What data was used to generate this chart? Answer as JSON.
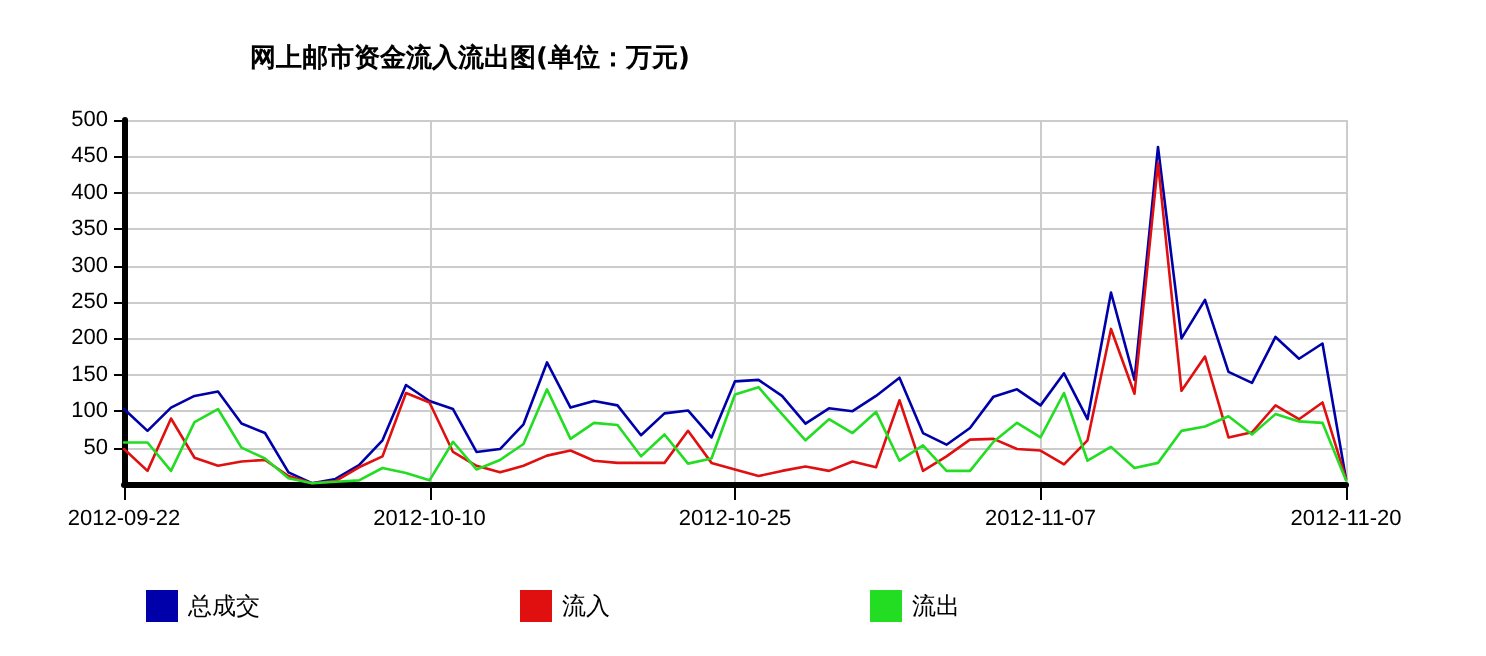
{
  "chart_data": {
    "type": "line",
    "title": "网上邮市资金流入流出图(单位：万元)",
    "categories": [
      "2012-09-22",
      null,
      null,
      null,
      null,
      null,
      null,
      null,
      null,
      null,
      null,
      null,
      null,
      "2012-10-10",
      null,
      null,
      null,
      null,
      null,
      null,
      null,
      null,
      null,
      null,
      null,
      null,
      "2012-10-25",
      null,
      null,
      null,
      null,
      null,
      null,
      null,
      null,
      null,
      null,
      null,
      null,
      "2012-11-07",
      null,
      null,
      null,
      null,
      null,
      null,
      null,
      null,
      null,
      null,
      null,
      null,
      "2012-11-20"
    ],
    "series": [
      {
        "name": "总成交",
        "color": "#0000aa",
        "values": [
          103,
          73,
          105,
          121,
          127,
          83,
          70,
          16,
          1,
          7,
          26,
          60,
          136,
          114,
          103,
          44,
          48,
          82,
          167,
          105,
          114,
          108,
          67,
          97,
          101,
          64,
          141,
          143,
          121,
          83,
          104,
          100,
          121,
          146,
          70,
          54,
          77,
          120,
          130,
          108,
          152,
          89,
          263,
          143,
          463,
          200,
          253,
          154,
          139,
          202,
          172,
          193,
          7
        ]
      },
      {
        "name": "流入",
        "color": "#e01010",
        "values": [
          48,
          18,
          90,
          36,
          25,
          31,
          33,
          11,
          1,
          4,
          23,
          38,
          125,
          112,
          44,
          25,
          16,
          25,
          39,
          46,
          32,
          29,
          29,
          29,
          73,
          29,
          20,
          11,
          18,
          24,
          18,
          31,
          23,
          115,
          18,
          38,
          61,
          62,
          48,
          46,
          27,
          60,
          213,
          124,
          441,
          128,
          175,
          64,
          71,
          108,
          89,
          112,
          7
        ]
      },
      {
        "name": "流出",
        "color": "#22dd22",
        "values": [
          57,
          57,
          18,
          85,
          103,
          50,
          35,
          8,
          1,
          3,
          5,
          22,
          15,
          5,
          58,
          20,
          33,
          55,
          130,
          62,
          84,
          81,
          38,
          68,
          28,
          35,
          123,
          133,
          96,
          60,
          89,
          70,
          99,
          32,
          53,
          18,
          18,
          58,
          84,
          64,
          125,
          32,
          51,
          22,
          29,
          73,
          79,
          93,
          68,
          96,
          86,
          84,
          5
        ]
      }
    ],
    "ylim": [
      0,
      500
    ],
    "yticks": [
      50,
      100,
      150,
      200,
      250,
      300,
      350,
      400,
      450,
      500
    ],
    "grid": true,
    "legend": "bottom left",
    "marker": "none",
    "line_style": "solid"
  }
}
